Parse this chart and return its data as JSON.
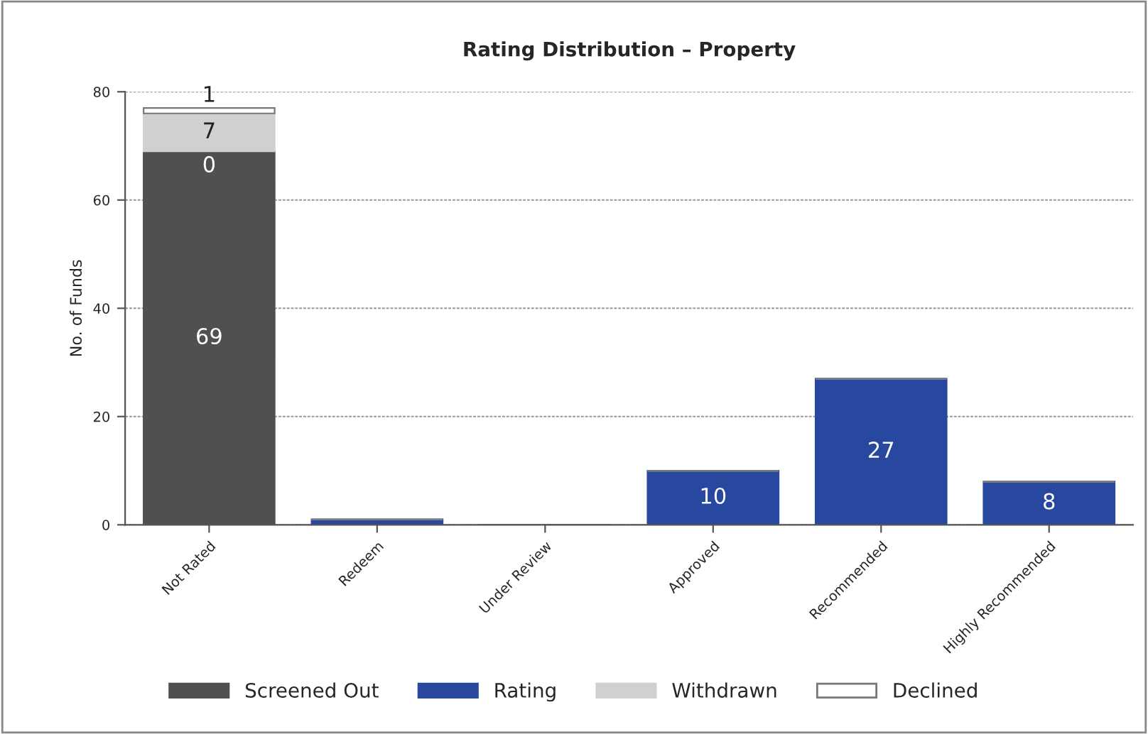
{
  "chart_data": {
    "type": "bar",
    "title": "Rating Distribution – Property",
    "ylabel": "No. of Funds",
    "categories": [
      "Not Rated",
      "Redeem",
      "Under Review",
      "Approved",
      "Recommended",
      "Highly Recommended"
    ],
    "stacked": true,
    "series": [
      {
        "name": "Screened Out",
        "color": "#505050",
        "values": [
          69,
          0,
          0,
          0,
          0,
          0
        ],
        "value_labels": [
          "69",
          null,
          null,
          null,
          null,
          null
        ]
      },
      {
        "name": "Rating",
        "color": "#2848a0",
        "values": [
          0,
          1,
          0,
          10,
          27,
          8
        ],
        "value_labels": [
          "0",
          null,
          null,
          "10",
          "27",
          "8"
        ]
      },
      {
        "name": "Withdrawn",
        "color": "#d0d0d0",
        "values": [
          7,
          0,
          0,
          0,
          0,
          0
        ],
        "value_labels": [
          "7",
          null,
          null,
          null,
          null,
          null
        ]
      },
      {
        "name": "Declined",
        "color": "#ffffff",
        "values": [
          1,
          0,
          0,
          0,
          0,
          0
        ],
        "value_labels": [
          "1",
          null,
          null,
          null,
          null,
          null
        ]
      }
    ],
    "ylim": [
      0,
      80
    ],
    "yticks": [
      0,
      20,
      40,
      60,
      80
    ],
    "grid": "y",
    "legend": "bottom"
  }
}
